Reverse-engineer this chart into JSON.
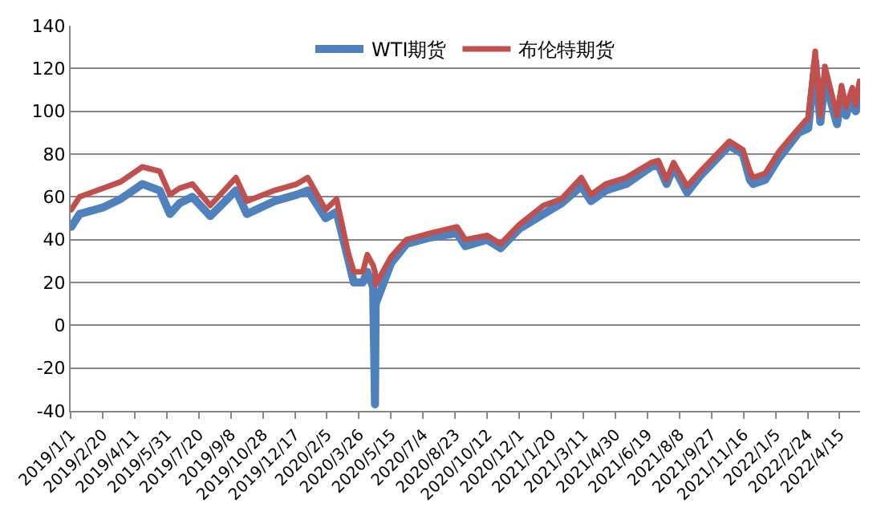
{
  "chart_data": {
    "type": "line",
    "x": [
      "2019-01-02",
      "2019-01-15",
      "2019-02-20",
      "2019-03-20",
      "2019-04-23",
      "2019-05-20",
      "2019-06-05",
      "2019-06-20",
      "2019-07-10",
      "2019-08-07",
      "2019-09-16",
      "2019-10-03",
      "2019-11-15",
      "2019-12-20",
      "2020-01-06",
      "2020-02-03",
      "2020-02-20",
      "2020-03-09",
      "2020-03-18",
      "2020-04-01",
      "2020-04-08",
      "2020-04-17",
      "2020-04-20",
      "2020-04-21",
      "2020-05-15",
      "2020-06-08",
      "2020-07-15",
      "2020-08-26",
      "2020-09-08",
      "2020-10-12",
      "2020-11-02",
      "2020-12-01",
      "2021-01-08",
      "2021-02-05",
      "2021-03-08",
      "2021-03-23",
      "2021-04-15",
      "2021-05-17",
      "2021-06-25",
      "2021-07-06",
      "2021-07-19",
      "2021-07-30",
      "2021-08-20",
      "2021-09-10",
      "2021-10-25",
      "2021-11-15",
      "2021-11-26",
      "2021-12-01",
      "2021-12-20",
      "2022-01-10",
      "2022-02-10",
      "2022-02-25",
      "2022-03-08",
      "2022-03-16",
      "2022-03-23",
      "2022-04-11",
      "2022-04-18",
      "2022-04-25",
      "2022-05-05",
      "2022-05-10",
      "2022-05-16"
    ],
    "series": [
      {
        "name": "WTI期货",
        "color": "#4f81bd",
        "values": [
          46,
          52,
          55,
          59,
          66,
          63,
          52,
          57,
          60,
          51,
          63,
          52,
          58,
          61,
          63,
          50,
          53,
          31,
          20,
          20,
          25,
          18,
          -37,
          10,
          29,
          38,
          41,
          43,
          37,
          40,
          36,
          45,
          52,
          57,
          65,
          58,
          63,
          66,
          74,
          75,
          66,
          74,
          62,
          70,
          84,
          80,
          68,
          66,
          68,
          78,
          90,
          92,
          123,
          95,
          115,
          94,
          108,
          98,
          108,
          100,
          110
        ]
      },
      {
        "name": "布伦特期货",
        "color": "#c0504d",
        "values": [
          54,
          60,
          64,
          67,
          74,
          72,
          61,
          64,
          66,
          56,
          69,
          58,
          63,
          66,
          69,
          54,
          59,
          34,
          25,
          25,
          33,
          28,
          25,
          19,
          32,
          40,
          43,
          46,
          40,
          42,
          38,
          47,
          56,
          59,
          69,
          61,
          66,
          69,
          76,
          77,
          68,
          76,
          65,
          72,
          86,
          82,
          72,
          69,
          71,
          81,
          92,
          97,
          128,
          98,
          121,
          98,
          112,
          102,
          111,
          103,
          114
        ]
      }
    ],
    "xlim": [
      "2019-01-01",
      "2022-05-17"
    ],
    "xticks": [
      {
        "value": "2019-01-01",
        "label": "2019/1/1"
      },
      {
        "value": "2019-02-20",
        "label": "2019/2/20"
      },
      {
        "value": "2019-04-11",
        "label": "2019/4/11"
      },
      {
        "value": "2019-05-31",
        "label": "2019/5/31"
      },
      {
        "value": "2019-07-20",
        "label": "2019/7/20"
      },
      {
        "value": "2019-09-08",
        "label": "2019/9/8"
      },
      {
        "value": "2019-10-28",
        "label": "2019/10/28"
      },
      {
        "value": "2019-12-17",
        "label": "2019/12/17"
      },
      {
        "value": "2020-02-05",
        "label": "2020/2/5"
      },
      {
        "value": "2020-03-26",
        "label": "2020/3/26"
      },
      {
        "value": "2020-05-15",
        "label": "2020/5/15"
      },
      {
        "value": "2020-07-04",
        "label": "2020/7/4"
      },
      {
        "value": "2020-08-23",
        "label": "2020/8/23"
      },
      {
        "value": "2020-10-12",
        "label": "2020/10/12"
      },
      {
        "value": "2020-12-01",
        "label": "2020/12/1"
      },
      {
        "value": "2021-01-20",
        "label": "2021/1/20"
      },
      {
        "value": "2021-03-11",
        "label": "2021/3/11"
      },
      {
        "value": "2021-04-30",
        "label": "2021/4/30"
      },
      {
        "value": "2021-06-19",
        "label": "2021/6/19"
      },
      {
        "value": "2021-08-08",
        "label": "2021/8/8"
      },
      {
        "value": "2021-09-27",
        "label": "2021/9/27"
      },
      {
        "value": "2021-11-16",
        "label": "2021/11/16"
      },
      {
        "value": "2022-01-05",
        "label": "2022/1/5"
      },
      {
        "value": "2022-02-24",
        "label": "2022/2/24"
      },
      {
        "value": "2022-04-15",
        "label": "2022/4/15"
      }
    ],
    "ylim": [
      -40,
      140
    ],
    "yticks": [
      -40,
      -20,
      0,
      20,
      40,
      60,
      80,
      100,
      120,
      140
    ],
    "grid": "y",
    "legend": "top",
    "marker": "none",
    "line_style": "solid"
  }
}
